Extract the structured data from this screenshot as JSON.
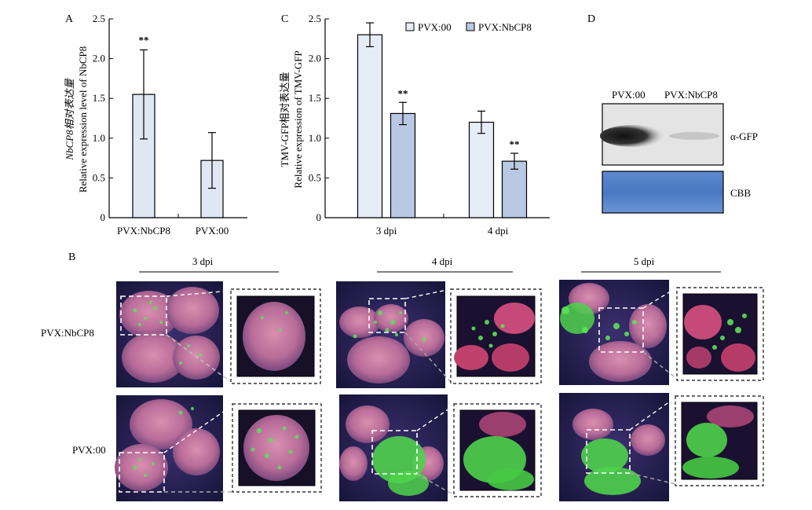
{
  "panels": {
    "a": "A",
    "b": "B",
    "c": "C",
    "d": "D"
  },
  "chart_data": [
    {
      "panel": "A",
      "type": "bar",
      "ylabel_line1": "NbCP8相对表达量",
      "ylabel_line2": "Relative expression level of NbCP8",
      "categories": [
        "PVX:NbCP8",
        "PVX:00"
      ],
      "values": [
        1.55,
        0.72
      ],
      "errors": [
        0.56,
        0.35
      ],
      "significance": [
        "**",
        ""
      ],
      "ylim": [
        0,
        2.5
      ],
      "yticks": [
        "0",
        "0.5",
        "1.0",
        "1.5",
        "2.0",
        "2.5"
      ],
      "bar_color": "#dfe7f3"
    },
    {
      "panel": "C",
      "type": "bar",
      "ylabel_line1": "TMV-GFP相对表达量",
      "ylabel_line2": "Relative expression of TMV-GFP",
      "categories": [
        "3 dpi",
        "4 dpi"
      ],
      "series": [
        {
          "name": "PVX:00",
          "values": [
            2.3,
            1.2
          ],
          "errors": [
            0.15,
            0.14
          ],
          "significance": [
            "",
            ""
          ],
          "color": "#e6edf7"
        },
        {
          "name": "PVX:NbCP8",
          "values": [
            1.31,
            0.71
          ],
          "errors": [
            0.14,
            0.1
          ],
          "significance": [
            "**",
            "**"
          ],
          "color": "#b9c8e3"
        }
      ],
      "ylim": [
        0,
        2.5
      ],
      "yticks": [
        "0",
        "0.5",
        "1.0",
        "1.5",
        "2.0",
        "2.5"
      ]
    }
  ],
  "western": {
    "lane_labels": [
      "PVX:00",
      "PVX:NbCP8"
    ],
    "band_labels": [
      "α-GFP",
      "CBB"
    ]
  },
  "photos": {
    "time_labels": [
      "3 dpi",
      "4 dpi",
      "5 dpi"
    ],
    "row_labels": [
      "PVX:NbCP8",
      "PVX:00"
    ]
  }
}
